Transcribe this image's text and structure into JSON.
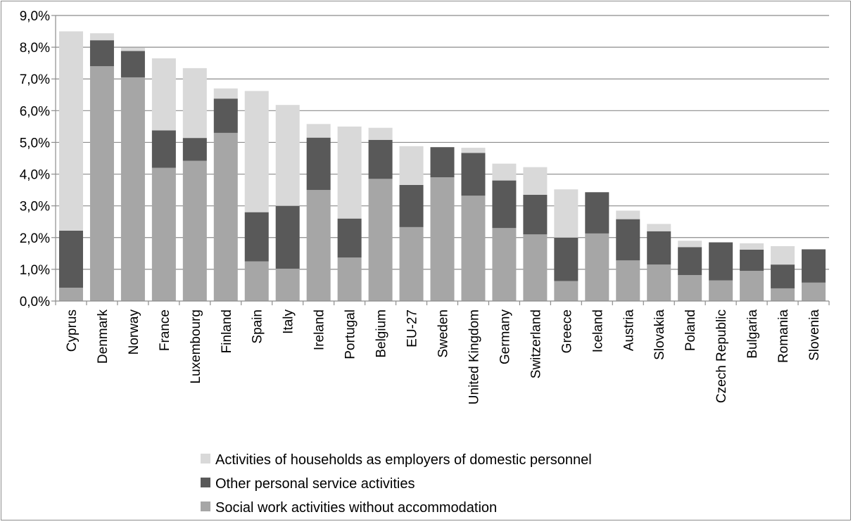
{
  "chart_data": {
    "type": "bar",
    "stacked": true,
    "title": "",
    "xlabel": "",
    "ylabel": "",
    "ylim": [
      0,
      9
    ],
    "y_ticks": [
      "0,0%",
      "1,0%",
      "2,0%",
      "3,0%",
      "4,0%",
      "5,0%",
      "6,0%",
      "7,0%",
      "8,0%",
      "9,0%"
    ],
    "grid": true,
    "legend_position": "bottom",
    "categories": [
      "Cyprus",
      "Denmark",
      "Norway",
      "France",
      "Luxembourg",
      "Finland",
      "Spain",
      "Italy",
      "Ireland",
      "Portugal",
      "Belgium",
      "EU-27",
      "Sweden",
      "United Kingdom",
      "Germany",
      "Switzerland",
      "Greece",
      "Iceland",
      "Austria",
      "Slovakia",
      "Poland",
      "Czech Republic",
      "Bulgaria",
      "Romania",
      "Slovenia"
    ],
    "series": [
      {
        "name": "Social work activities without accommodation",
        "color": "#a6a6a6",
        "values": [
          0.42,
          7.4,
          7.05,
          4.2,
          4.42,
          5.3,
          1.25,
          1.02,
          3.5,
          1.37,
          3.85,
          2.33,
          3.9,
          3.32,
          2.3,
          2.1,
          0.63,
          2.13,
          1.28,
          1.15,
          0.82,
          0.65,
          0.95,
          0.4,
          0.58
        ]
      },
      {
        "name": "Other personal service activities",
        "color": "#595959",
        "values": [
          1.8,
          0.82,
          0.83,
          1.18,
          0.72,
          1.08,
          1.55,
          1.98,
          1.65,
          1.23,
          1.23,
          1.33,
          0.95,
          1.35,
          1.5,
          1.25,
          1.37,
          1.3,
          1.3,
          1.05,
          0.88,
          1.2,
          0.67,
          0.75,
          1.05
        ]
      },
      {
        "name": "Activities of households as employers of domestic personnel",
        "color": "#d9d9d9",
        "values": [
          6.28,
          0.22,
          0.1,
          2.27,
          2.2,
          0.32,
          3.82,
          3.18,
          0.43,
          2.9,
          0.38,
          1.22,
          0.0,
          0.16,
          0.53,
          0.87,
          1.52,
          0.0,
          0.27,
          0.23,
          0.2,
          0.0,
          0.2,
          0.58,
          0.0
        ]
      }
    ],
    "legend_order": [
      "Activities of households as employers of domestic personnel",
      "Other personal service activities",
      "Social work activities without accommodation"
    ]
  }
}
